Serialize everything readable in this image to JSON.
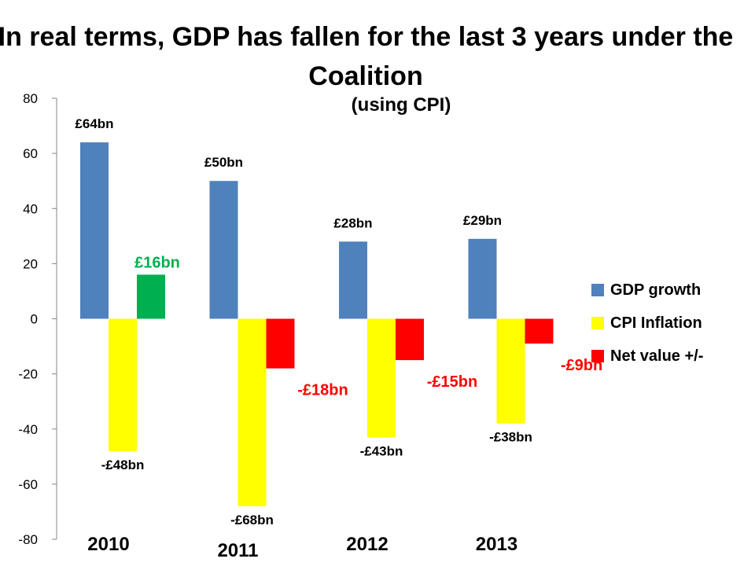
{
  "title": "In real terms, GDP has fallen for the last 3 years under the Coalition",
  "subtitle": "(using CPI)",
  "chart_data": {
    "type": "bar",
    "categories": [
      "2010",
      "2011",
      "2012",
      "2013"
    ],
    "series": [
      {
        "name": "GDP growth",
        "color": "#4F81BD",
        "values": [
          64,
          50,
          28,
          29
        ],
        "labels": [
          "£64bn",
          "£50bn",
          "£28bn",
          "£29bn"
        ],
        "label_colors": [
          "#000000",
          "#000000",
          "#000000",
          "#000000"
        ]
      },
      {
        "name": "CPI Inflation",
        "color": "#FFFF00",
        "values": [
          -48,
          -68,
          -43,
          -38
        ],
        "labels": [
          "-£48bn",
          "-£68bn",
          "-£43bn",
          "-£38bn"
        ],
        "label_colors": [
          "#000000",
          "#000000",
          "#000000",
          "#000000"
        ]
      },
      {
        "name": "Net value +/-",
        "color": "#FF0000",
        "values": [
          16,
          -18,
          -15,
          -9
        ],
        "labels": [
          "£16bn",
          "-£18bn",
          "-£15bn",
          "-£9bn"
        ],
        "label_colors": [
          "#00B050",
          "#FF0000",
          "#FF0000",
          "#FF0000"
        ],
        "value_colors": [
          "#00B050",
          "#FF0000",
          "#FF0000",
          "#FF0000"
        ]
      }
    ],
    "ylim": [
      -80,
      80
    ],
    "yticks": [
      80,
      60,
      40,
      20,
      0,
      -20,
      -40,
      -60,
      -80
    ],
    "ytick_labels": [
      "80",
      "60",
      "40",
      "20",
      "0",
      "-20",
      "-40",
      "-60",
      "-80"
    ],
    "grid": false,
    "legend_position": "right"
  }
}
